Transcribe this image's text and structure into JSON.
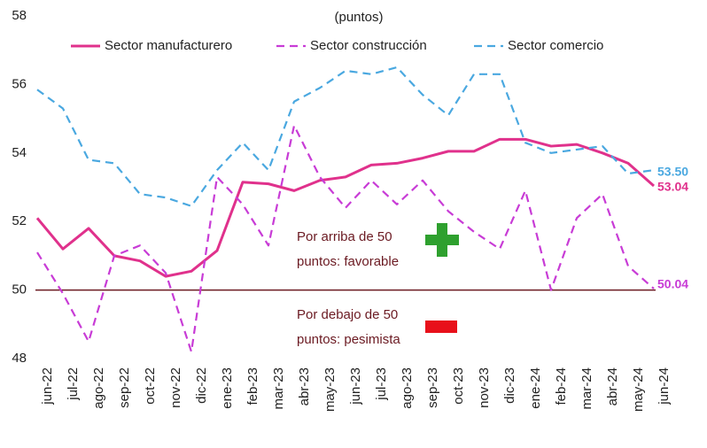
{
  "chart_data": {
    "type": "line",
    "ylabel": "(puntos)",
    "categories": [
      "jun-22",
      "jul-22",
      "ago-22",
      "sep-22",
      "oct-22",
      "nov-22",
      "dic-22",
      "ene-23",
      "feb-23",
      "mar-23",
      "abr-23",
      "may-23",
      "jun-23",
      "jul-23",
      "ago-23",
      "sep-23",
      "oct-23",
      "nov-23",
      "dic-23",
      "ene-24",
      "feb-24",
      "mar-24",
      "abr-24",
      "may-24",
      "jun-24"
    ],
    "series": [
      {
        "name": "Sector manufacturero",
        "color": "#e0318c",
        "dashed": false,
        "end_label": "53.04",
        "values": [
          52.1,
          51.2,
          51.8,
          51.0,
          50.85,
          50.4,
          50.55,
          51.15,
          53.15,
          53.1,
          52.9,
          53.2,
          53.3,
          53.65,
          53.7,
          53.85,
          54.05,
          54.05,
          54.4,
          54.4,
          54.2,
          54.25,
          54.0,
          53.7,
          53.04
        ]
      },
      {
        "name": "Sector construcción",
        "color": "#c83cd6",
        "dashed": true,
        "end_label": "50.04",
        "values": [
          51.1,
          49.9,
          48.5,
          51.0,
          51.3,
          50.5,
          48.2,
          53.3,
          52.5,
          51.3,
          54.8,
          53.3,
          52.4,
          53.2,
          52.5,
          53.2,
          52.3,
          51.7,
          51.2,
          52.9,
          50.0,
          52.1,
          52.8,
          50.7,
          50.04
        ]
      },
      {
        "name": "Sector comercio",
        "color": "#4aa8e0",
        "dashed": true,
        "end_label": "53.50",
        "values": [
          55.85,
          55.3,
          53.8,
          53.7,
          52.8,
          52.7,
          52.45,
          53.5,
          54.3,
          53.5,
          55.5,
          55.9,
          56.4,
          56.3,
          56.5,
          55.7,
          55.1,
          56.3,
          56.3,
          54.3,
          54.0,
          54.1,
          54.2,
          53.4,
          53.5
        ]
      }
    ],
    "ylim": [
      48,
      58
    ],
    "yticks": [
      48,
      50,
      52,
      54,
      56,
      58
    ],
    "ref_line": 50,
    "annotations": [
      {
        "lines": [
          "Por arriba de 50",
          "puntos: favorable"
        ]
      },
      {
        "lines": [
          "Por debajo de 50",
          "puntos: pesimista"
        ]
      }
    ]
  }
}
